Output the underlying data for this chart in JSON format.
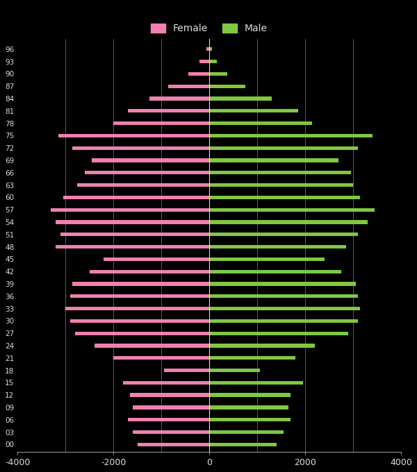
{
  "background_color": "#000000",
  "female_color": "#f080b0",
  "male_color": "#80c840",
  "female_label": "Female",
  "male_label": "Male",
  "xlim": [
    -4000,
    4000
  ],
  "xticks": [
    -4000,
    -2000,
    0,
    2000,
    4000
  ],
  "xticklabels": [
    "-4000",
    "-2000",
    "0",
    "2000",
    "4000"
  ],
  "ages": [
    0,
    3,
    6,
    9,
    12,
    15,
    18,
    21,
    24,
    27,
    30,
    33,
    36,
    39,
    42,
    45,
    48,
    51,
    54,
    57,
    60,
    63,
    66,
    69,
    72,
    75,
    78,
    81,
    84,
    87,
    90,
    93,
    96
  ],
  "age_labels": [
    "00",
    "03",
    "06",
    "09",
    "12",
    "15",
    "18",
    "21",
    "24",
    "27",
    "30",
    "33",
    "36",
    "39",
    "42",
    "45",
    "48",
    "51",
    "54",
    "57",
    "60",
    "63",
    "66",
    "69",
    "72",
    "75",
    "78",
    "81",
    "84",
    "87",
    "90",
    "93",
    "96"
  ],
  "female_values": [
    1500,
    1600,
    1700,
    1600,
    1650,
    1800,
    950,
    2000,
    2400,
    2800,
    2900,
    3000,
    2900,
    2850,
    2500,
    2200,
    3200,
    3100,
    3200,
    3300,
    3050,
    2750,
    2600,
    2450,
    2850,
    3150,
    2000,
    1700,
    1250,
    850,
    430,
    200,
    65
  ],
  "male_values": [
    1400,
    1550,
    1700,
    1650,
    1700,
    1950,
    1050,
    1800,
    2200,
    2900,
    3100,
    3150,
    3100,
    3050,
    2750,
    2400,
    2850,
    3100,
    3300,
    3450,
    3150,
    3000,
    2950,
    2700,
    3100,
    3400,
    2150,
    1850,
    1300,
    750,
    380,
    160,
    55
  ],
  "grid_color": "#888888",
  "grid_positions": [
    -3000,
    -2000,
    -1000,
    1000,
    2000,
    3000
  ],
  "tick_color": "#dddddd",
  "bar_height": 0.9,
  "figsize": [
    6.0,
    6.8
  ],
  "dpi": 100
}
